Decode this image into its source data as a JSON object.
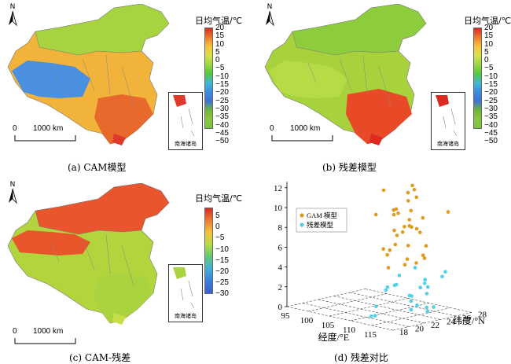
{
  "panels": [
    {
      "caption": "(a) CAM模型",
      "north": "N",
      "legend_title": "日均气温/℃",
      "ticks": [
        "20",
        "15",
        "10",
        "5",
        "0",
        "−5",
        "−10",
        "−15",
        "−20",
        "−25",
        "−30",
        "−35",
        "−40",
        "−45",
        "−50"
      ],
      "scale_zero": "0",
      "scale_label": "1000 km",
      "inset_label": "南海诸岛",
      "palette": {
        "main": "#f2b33a",
        "north": "#a6d33f",
        "west": "#4a8fe0",
        "south": "#e8692c",
        "coast": "#de3a2a"
      }
    },
    {
      "caption": "(b) 残差模型",
      "north": "N",
      "legend_title": "日均气温/℃",
      "ticks": [
        "20",
        "15",
        "10",
        "5",
        "0",
        "−5",
        "−10",
        "−15",
        "−20",
        "−25",
        "−30",
        "−35",
        "−40",
        "−45",
        "−50"
      ],
      "scale_zero": "0",
      "scale_label": "1000 km",
      "inset_label": "南海诸岛",
      "palette": {
        "main": "#a8d23c",
        "north": "#8ccc3d",
        "west": "#b6dc45",
        "south": "#e84a28",
        "coast": "#dd2a20"
      }
    },
    {
      "caption": "(c) CAM-残差",
      "north": "N",
      "legend_title": "日均气温/℃",
      "ticks": [
        "5",
        "0",
        "−5",
        "−10",
        "−15",
        "−20",
        "−25",
        "−30"
      ],
      "scale_zero": "0",
      "scale_label": "1000 km",
      "inset_label": "南海诸岛",
      "palette": {
        "main": "#b2d53e",
        "north": "#e9552c",
        "west": "#e8552a",
        "south": "#a9d33f",
        "coast": "#c7df47"
      }
    }
  ],
  "scatter": {
    "caption": "(d) 残差对比",
    "xlabel": "经度/°E",
    "ylabel": "纬度/°N",
    "x_ticks": [
      "95",
      "100",
      "105",
      "110",
      "115"
    ],
    "y_ticks": [
      "18",
      "20",
      "22",
      "24",
      "26",
      "28"
    ],
    "z_ticks": [
      "0",
      "2",
      "4",
      "6",
      "8",
      "10",
      "12"
    ],
    "legend": [
      {
        "name": "GAM 模型",
        "color": "#e09a1e"
      },
      {
        "name": "残差模型",
        "color": "#4fd0e8"
      }
    ]
  },
  "chart_data": {
    "type": "scatter",
    "title": "",
    "xlabel": "经度/°E",
    "ylabel": "纬度/°N",
    "xlim": [
      95,
      120
    ],
    "ylim": [
      18,
      28
    ],
    "zlim": [
      0,
      12
    ],
    "series": [
      {
        "name": "GAM 模型",
        "z_values": [
          13.2,
          12.8,
          12.5,
          12.1,
          11.9,
          11.6,
          11.4,
          11.2,
          11.0,
          10.8,
          10.6,
          10.4,
          10.1,
          9.9,
          9.7,
          9.5,
          9.2,
          9.0,
          8.8,
          8.5,
          8.3,
          8.1,
          7.9,
          7.6,
          7.4,
          7.2,
          6.9,
          6.7,
          6.5,
          6.2,
          6.0,
          5.8,
          5.5,
          5.3,
          5.1
        ]
      },
      {
        "name": "残差模型",
        "z_values": [
          4.8,
          4.5,
          4.3,
          4.0,
          3.8,
          3.6,
          3.3,
          3.1,
          2.9,
          2.7,
          2.5,
          2.3,
          2.1,
          1.9,
          1.7,
          1.5,
          1.3,
          1.1,
          0.9,
          0.7,
          0.6,
          0.4,
          0.3,
          0.2
        ]
      }
    ]
  }
}
